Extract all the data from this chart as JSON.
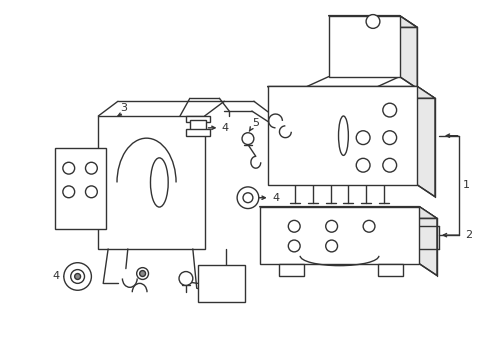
{
  "bg_color": "#ffffff",
  "line_color": "#333333",
  "line_width": 1.0,
  "fig_width": 4.89,
  "fig_height": 3.6,
  "dpi": 100
}
